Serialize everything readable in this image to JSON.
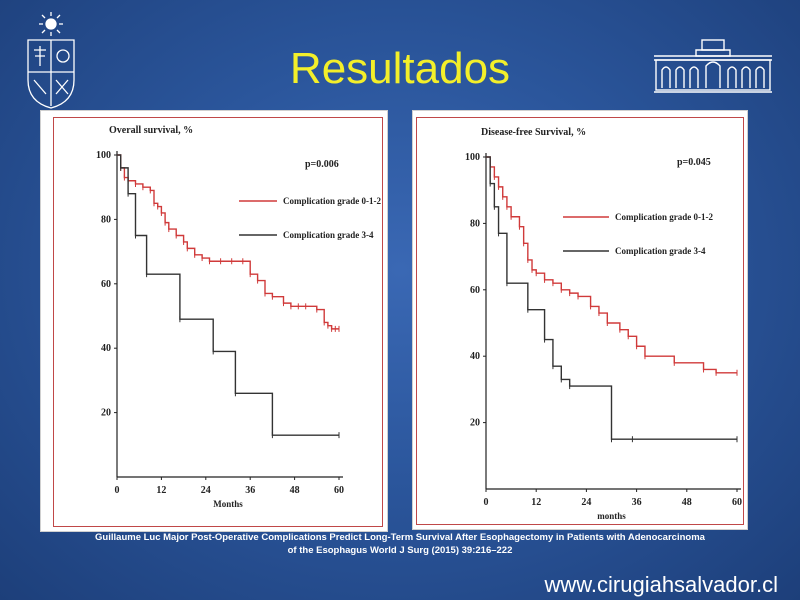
{
  "slide": {
    "title": "Resultados",
    "citation_line1": "Guillaume Luc  Major Post-Operative Complications Predict Long-Term Survival After Esophagectomy in Patients with Adenocarcinoma",
    "citation_line2": "of the Esophagus  World J Surg (2015) 39:216–222",
    "website": "www.cirugiahsalvador.cl"
  },
  "colors": {
    "title": "#f3ef2a",
    "background": "#2b569c",
    "series_red": "#d03a3a",
    "series_black": "#333333"
  },
  "chart_data": [
    {
      "type": "line",
      "step": true,
      "title": "Overall survival, %",
      "xlabel": "Months",
      "ylabel": "",
      "p_value": "p=0.006",
      "x_ticks": [
        0,
        12,
        24,
        36,
        48,
        60
      ],
      "y_ticks": [
        20,
        40,
        60,
        80,
        100
      ],
      "xlim": [
        0,
        60
      ],
      "ylim": [
        0,
        100
      ],
      "legend_position": "right",
      "series": [
        {
          "name": "Complication grade 0-1-2",
          "color": "#d03a3a",
          "x": [
            0,
            1,
            2,
            3,
            5,
            7,
            9,
            10,
            11,
            12,
            13,
            14,
            16,
            18,
            19,
            21,
            23,
            25,
            28,
            31,
            34,
            36,
            38,
            40,
            42,
            45,
            47,
            49,
            51,
            54,
            56,
            57,
            58,
            59,
            60
          ],
          "y": [
            100,
            96,
            93,
            92,
            91,
            90,
            89,
            85,
            84,
            82,
            79,
            77,
            75,
            73,
            71,
            69,
            68,
            67,
            67,
            67,
            67,
            63,
            61,
            57,
            56,
            54,
            53,
            53,
            53,
            52,
            48,
            47,
            46,
            46,
            46
          ]
        },
        {
          "name": "Complication grade 3-4",
          "color": "#333333",
          "x": [
            0,
            1,
            3,
            5,
            8,
            17,
            26,
            32,
            42,
            60
          ],
          "y": [
            100,
            96,
            88,
            75,
            63,
            49,
            39,
            26,
            13,
            13
          ]
        }
      ]
    },
    {
      "type": "line",
      "step": true,
      "title": "Disease-free Survival, %",
      "xlabel": "months",
      "ylabel": "",
      "p_value": "p=0.045",
      "x_ticks": [
        0,
        12,
        24,
        36,
        48,
        60
      ],
      "y_ticks": [
        20,
        40,
        60,
        80,
        100
      ],
      "xlim": [
        0,
        60
      ],
      "ylim": [
        0,
        100
      ],
      "legend_position": "right",
      "series": [
        {
          "name": "Complication grade 0-1-2",
          "color": "#d03a3a",
          "x": [
            0,
            1,
            2,
            3,
            4,
            5,
            6,
            8,
            9,
            10,
            11,
            12,
            14,
            16,
            18,
            20,
            22,
            25,
            27,
            29,
            32,
            34,
            36,
            38,
            45,
            52,
            55,
            60
          ],
          "y": [
            100,
            97,
            94,
            91,
            88,
            85,
            82,
            79,
            74,
            69,
            66,
            65,
            63,
            62,
            60,
            59,
            58,
            55,
            53,
            50,
            48,
            46,
            43,
            40,
            38,
            36,
            35,
            35
          ]
        },
        {
          "name": "Complication grade 3-4",
          "color": "#333333",
          "x": [
            0,
            1,
            2,
            3,
            5,
            10,
            14,
            16,
            18,
            20,
            30,
            35,
            60
          ],
          "y": [
            100,
            92,
            85,
            77,
            62,
            54,
            45,
            37,
            33,
            31,
            15,
            15,
            15
          ]
        }
      ]
    }
  ]
}
